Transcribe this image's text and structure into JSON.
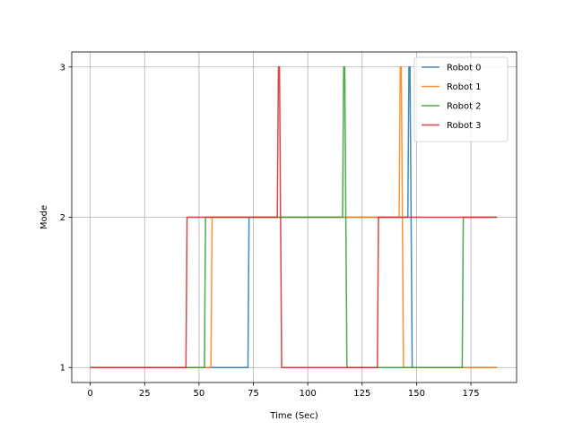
{
  "chart_data": {
    "type": "line",
    "title": "",
    "xlabel": "Time (Sec)",
    "ylabel": "Mode",
    "xlim": [
      -8.5,
      196
    ],
    "ylim": [
      0.9,
      3.1
    ],
    "xticks": [
      0,
      25,
      50,
      75,
      100,
      125,
      150,
      175
    ],
    "yticks": [
      1,
      2,
      3
    ],
    "grid": true,
    "legend_position": "top-right",
    "series": [
      {
        "name": "Robot 0",
        "color": "#1f77b4",
        "x": [
          0,
          72.5,
          73,
          146,
          146.5,
          147,
          147.5,
          148,
          187
        ],
        "y": [
          1,
          1,
          2,
          2,
          3,
          3,
          2,
          1,
          1
        ]
      },
      {
        "name": "Robot 1",
        "color": "#ff7f0e",
        "x": [
          0,
          55.5,
          56,
          142,
          142.5,
          143,
          143.5,
          144,
          187
        ],
        "y": [
          1,
          1,
          2,
          2,
          3,
          3,
          2,
          1,
          1
        ]
      },
      {
        "name": "Robot 2",
        "color": "#2ca02c",
        "x": [
          0,
          52.5,
          53,
          116,
          116.5,
          117,
          117.5,
          118,
          171,
          171.5,
          187
        ],
        "y": [
          1,
          1,
          2,
          2,
          3,
          3,
          2,
          1,
          1,
          2,
          2
        ]
      },
      {
        "name": "Robot 3",
        "color": "#d62728",
        "x": [
          0,
          44,
          44.5,
          86,
          86.5,
          87,
          87.5,
          88,
          132,
          132.5,
          187
        ],
        "y": [
          1,
          1,
          2,
          2,
          3,
          3,
          2,
          1,
          1,
          2,
          2
        ]
      }
    ]
  }
}
